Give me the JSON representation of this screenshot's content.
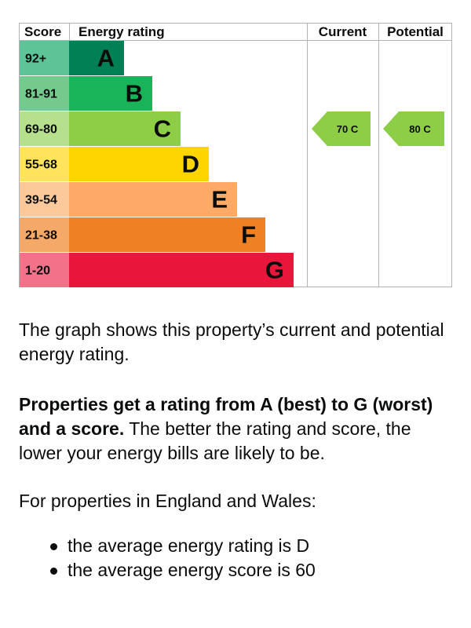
{
  "chart_data": {
    "type": "table",
    "headers": {
      "score": "Score",
      "rating": "Energy rating",
      "current": "Current",
      "potential": "Potential"
    },
    "bands": [
      {
        "range": "92+",
        "letter": "A",
        "color": "#008054",
        "score_color": "#5cc497"
      },
      {
        "range": "81-91",
        "letter": "B",
        "color": "#19b459",
        "score_color": "#74c98c"
      },
      {
        "range": "69-80",
        "letter": "C",
        "color": "#8dce46",
        "score_color": "#b6df8e"
      },
      {
        "range": "55-68",
        "letter": "D",
        "color": "#ffd500",
        "score_color": "#ffe45b"
      },
      {
        "range": "39-54",
        "letter": "E",
        "color": "#fcaa65",
        "score_color": "#fcc99b"
      },
      {
        "range": "21-38",
        "letter": "F",
        "color": "#ef8023",
        "score_color": "#f4a968"
      },
      {
        "range": "1-20",
        "letter": "G",
        "color": "#e9153b",
        "score_color": "#f2728a"
      }
    ],
    "current": {
      "score": 70,
      "letter": "C",
      "label": "70  C"
    },
    "potential": {
      "score": 80,
      "letter": "C",
      "label": "80  C"
    }
  },
  "text": {
    "p1": "The graph shows this property’s current and potential energy rating.",
    "p2_bold": "Properties get a rating from A (best) to G (worst) and a score.",
    "p2_rest": " The better the rating and score, the lower your energy bills are likely to be.",
    "p3": "For properties in England and Wales:",
    "bullets": [
      "the average energy rating is D",
      "the average energy score is 60"
    ]
  }
}
